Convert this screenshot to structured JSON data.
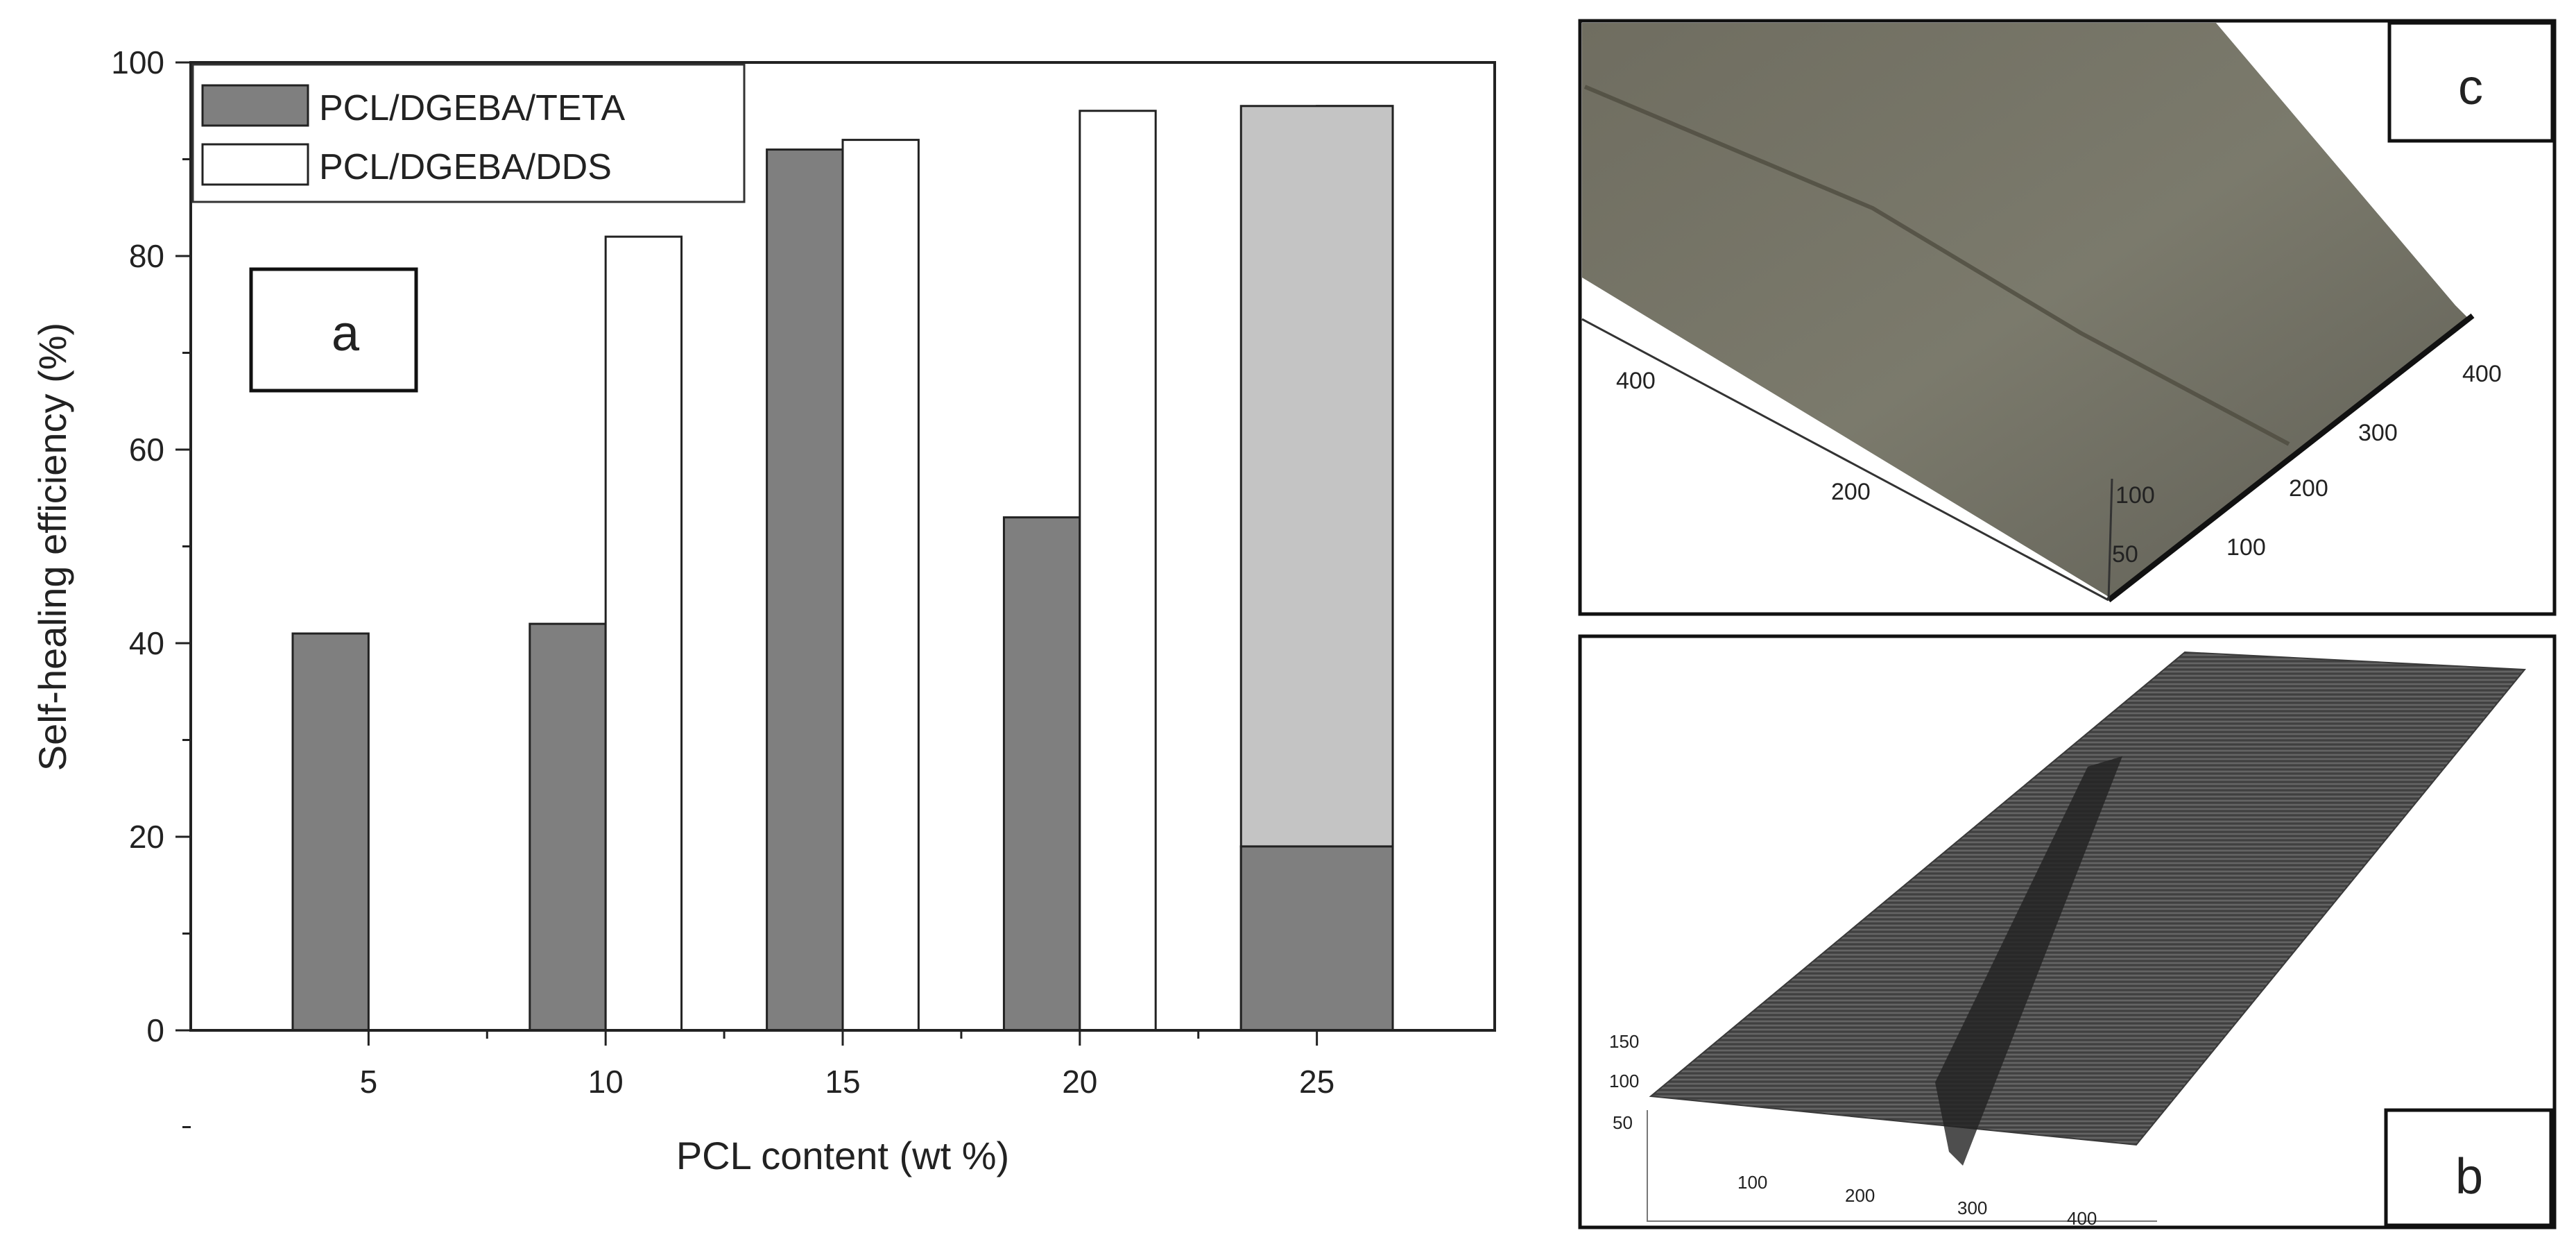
{
  "chart_data": {
    "type": "bar",
    "xlabel": "PCL content (wt %)",
    "ylabel": "Self-healing efficiency (%)",
    "ylim": [
      0,
      100
    ],
    "yticks": [
      0,
      20,
      40,
      60,
      80,
      100
    ],
    "categories": [
      "5",
      "10",
      "15",
      "20",
      "25"
    ],
    "legend_position": "top-left",
    "series": [
      {
        "name": "PCL/DGEBA/TETA",
        "color": "#7f7f7f",
        "values": [
          41,
          42,
          91,
          53,
          19
        ]
      },
      {
        "name": "PCL/DGEBA/DDS",
        "color": "#ffffff",
        "values": [
          null,
          82,
          92,
          95,
          95.5
        ]
      }
    ],
    "overlay_bar": {
      "category": "25",
      "color": "#c4c4c4",
      "from": 19,
      "to": 95.5
    },
    "grid": false
  },
  "panels": {
    "a": {
      "letter": "a"
    },
    "b": {
      "letter": "b",
      "axis_labels": [
        "150",
        "100",
        "50",
        "100",
        "200",
        "300",
        "400"
      ]
    },
    "c": {
      "letter": "c",
      "axis_labels": [
        "400",
        "200",
        "100",
        "50",
        "100",
        "200",
        "300",
        "400"
      ]
    }
  }
}
